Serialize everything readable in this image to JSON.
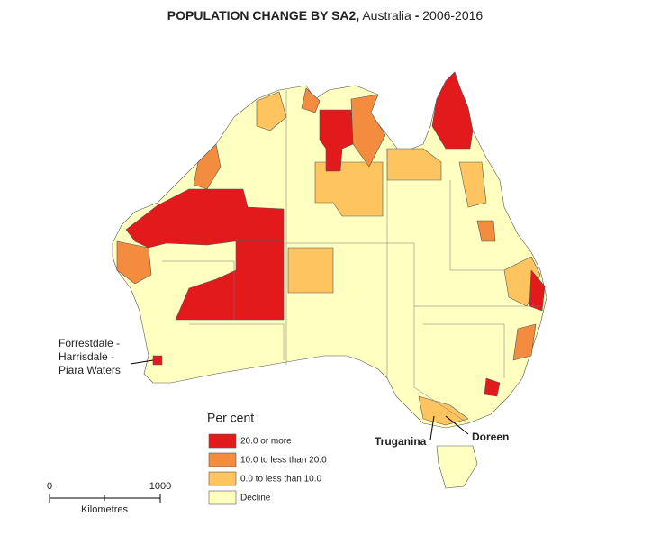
{
  "title": [
    "POPULATION CHANGE BY SA2,",
    "Australia",
    "-",
    "2006-2016"
  ],
  "legend": {
    "title": "Per cent",
    "items": [
      {
        "label": "20.0 or more",
        "color": "#e31a1c"
      },
      {
        "label": "10.0 to less than 20.0",
        "color": "#f48c3f"
      },
      {
        "label": "0.0 to less than 10.0",
        "color": "#fec460"
      },
      {
        "label": "Decline",
        "color": "#ffffc0"
      }
    ]
  },
  "scale_bar": {
    "labels": [
      "0",
      "1000"
    ],
    "unit": "Kilometres"
  },
  "places": [
    {
      "lines": [
        "Forrestdale -",
        "Harrisdale -",
        "Piara Waters"
      ]
    },
    {
      "lines": [
        "Truganina"
      ]
    },
    {
      "lines": [
        "Doreen"
      ]
    }
  ]
}
